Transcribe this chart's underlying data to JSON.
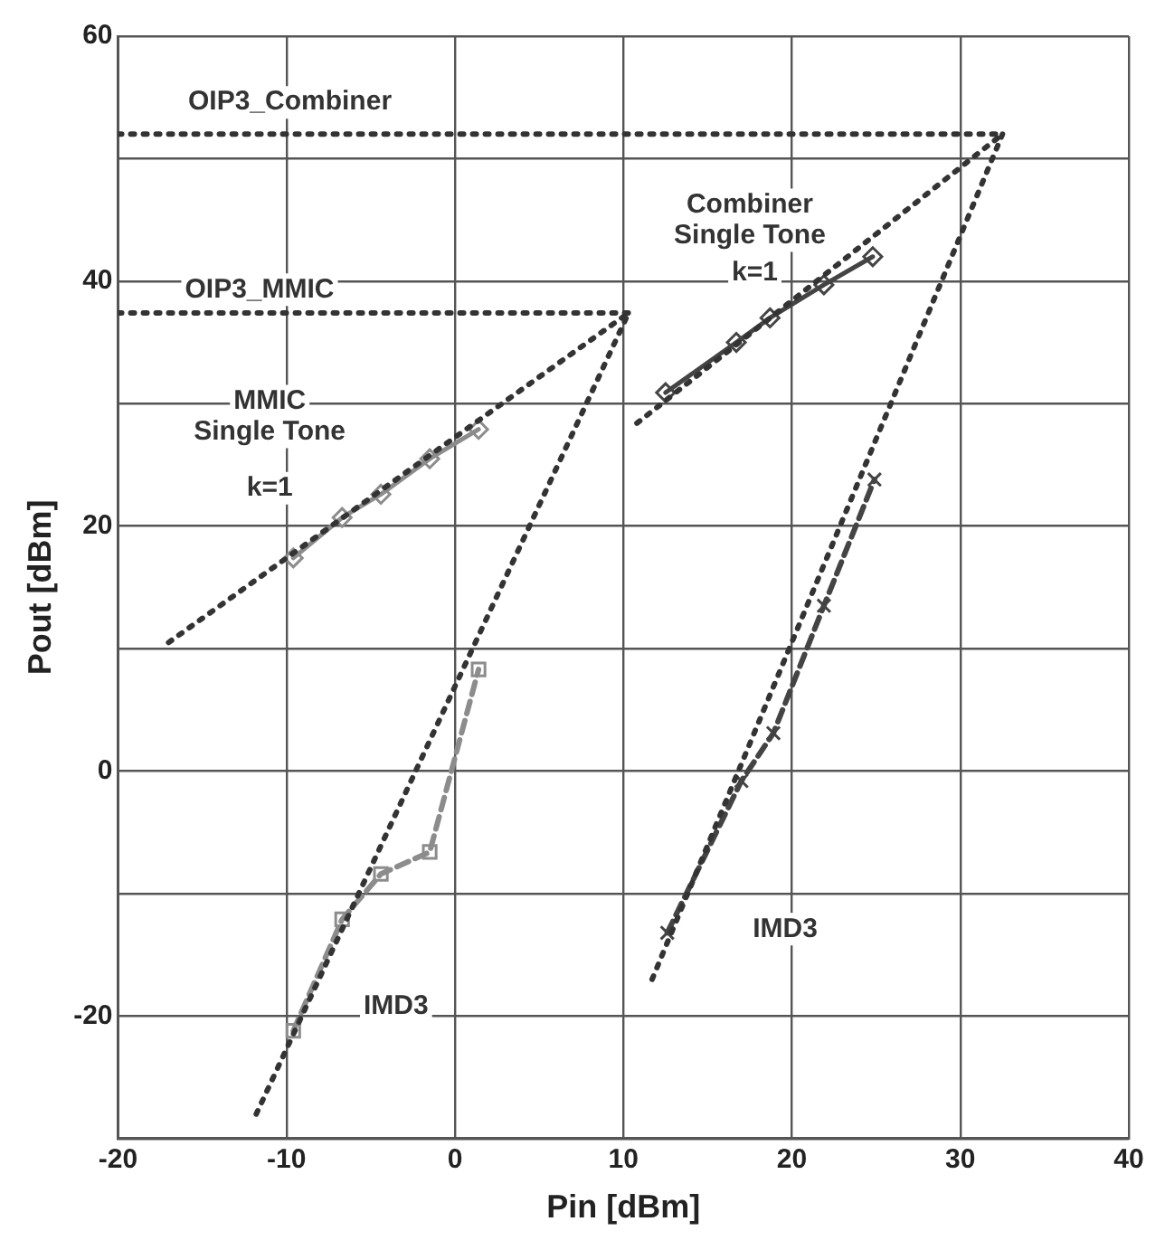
{
  "chart_data": {
    "type": "line",
    "xlabel": "Pin [dBm]",
    "ylabel": "Pout [dBm]",
    "xlim": [
      -20,
      40
    ],
    "xticks": [
      -20,
      -10,
      0,
      10,
      20,
      30,
      40
    ],
    "ylim": [
      -30,
      60
    ],
    "yticks": [
      {
        "value": -30,
        "label": null
      },
      -20,
      {
        "value": -10,
        "label": null
      },
      0,
      {
        "value": 10,
        "label": null
      },
      20,
      {
        "value": 30,
        "label": null
      },
      40,
      {
        "value": 50,
        "label": null
      },
      60
    ],
    "grid": true,
    "legend": false,
    "series": [
      {
        "color": "#333333",
        "line_style": "dotted",
        "marker": "none",
        "x": [
          -20,
          10.3
        ],
        "values": [
          37.4,
          37.4
        ]
      },
      {
        "color": "#333333",
        "line_style": "dotted",
        "marker": "none",
        "x": [
          -20,
          32.5
        ],
        "values": [
          52,
          52
        ]
      },
      {
        "color": "#333333",
        "line_style": "dotted",
        "marker": "none",
        "x": [
          -17,
          10.3
        ],
        "values": [
          10.5,
          37.4
        ]
      },
      {
        "color": "#333333",
        "line_style": "dotted",
        "marker": "none",
        "x": [
          -11.8,
          10.3
        ],
        "values": [
          -28,
          37.4
        ]
      },
      {
        "color": "#333333",
        "line_style": "dotted",
        "marker": "none",
        "x": [
          10.8,
          32.5
        ],
        "values": [
          28.4,
          52
        ]
      },
      {
        "color": "#333333",
        "line_style": "dotted",
        "marker": "none",
        "x": [
          11.7,
          32.5
        ],
        "values": [
          -17,
          52
        ]
      },
      {
        "color": "#8c8c8c",
        "line_style": "solid",
        "marker": "diamond",
        "x": [
          -9.6,
          -6.7,
          -4.4,
          -1.5,
          1.4
        ],
        "values": [
          17.4,
          20.7,
          22.6,
          25.5,
          27.9
        ]
      },
      {
        "color": "#8c8c8c",
        "line_style": "dashed",
        "marker": "square",
        "x": [
          -9.6,
          -6.7,
          -4.4,
          -1.5,
          1.4
        ],
        "values": [
          -21.2,
          -12.1,
          -8.4,
          -6.6,
          8.3
        ]
      },
      {
        "color": "#444444",
        "line_style": "solid",
        "marker": "diamond",
        "x": [
          12.5,
          16.7,
          18.7,
          21.9,
          24.8
        ],
        "values": [
          30.9,
          35.0,
          37.0,
          39.7,
          42.0
        ]
      },
      {
        "color": "#444444",
        "line_style": "dashed",
        "marker": "cross",
        "x": [
          12.6,
          17.0,
          18.9,
          21.9,
          24.9
        ],
        "values": [
          -13.2,
          -0.8,
          3.1,
          13.5,
          23.8
        ]
      }
    ],
    "annotations": [
      "OIP3_Combiner",
      "OIP3_MMIC",
      "MMIC\nSingle Tone",
      "k=1",
      "Combiner\nSingle Tone",
      "k=1",
      "IMD3",
      "IMD3"
    ]
  }
}
